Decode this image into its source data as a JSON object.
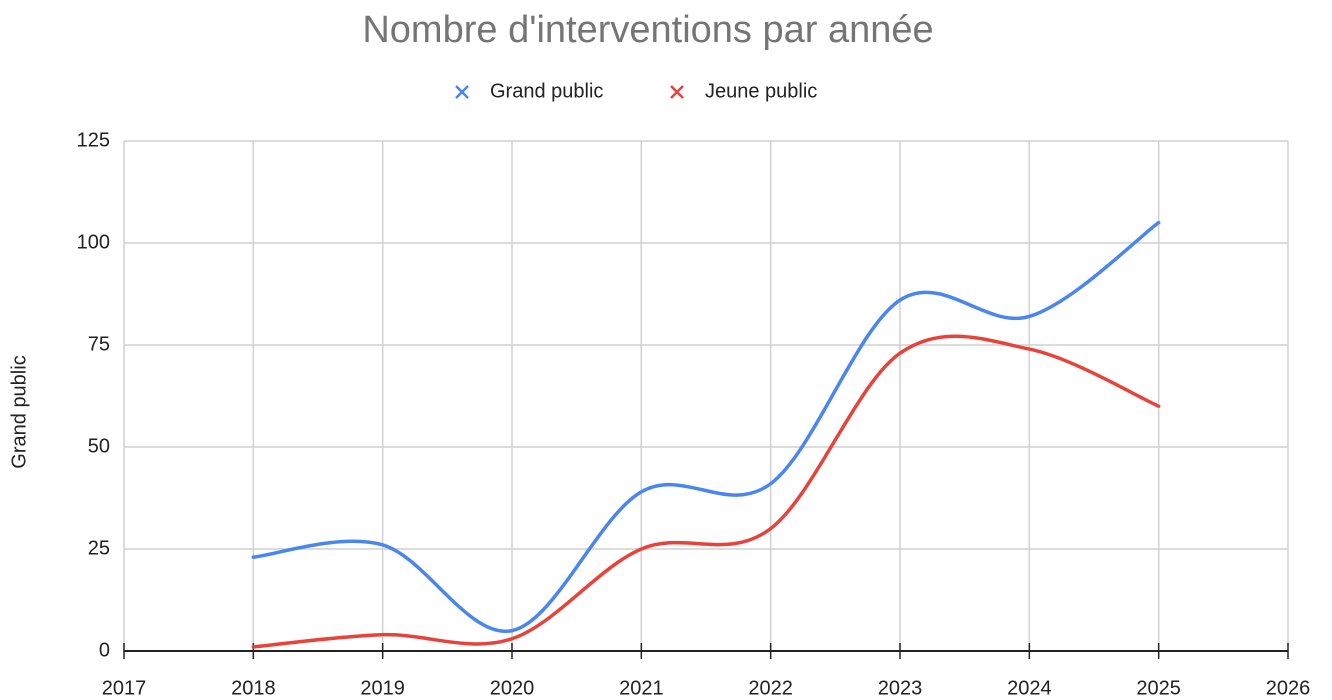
{
  "chart_data": {
    "type": "line",
    "title": "Nombre d'interventions par année",
    "y_label": "Grand public",
    "x": [
      2018,
      2019,
      2020,
      2021,
      2022,
      2023,
      2024,
      2025
    ],
    "series": [
      {
        "name": "Grand public",
        "color": "#4a86f0",
        "values": [
          23,
          26,
          5,
          39,
          41,
          86,
          82,
          105
        ]
      },
      {
        "name": "Jeune public",
        "color": "#e8433a",
        "values": [
          1,
          4,
          3,
          25,
          30,
          73,
          74,
          60
        ]
      }
    ],
    "xlim": [
      2017,
      2026
    ],
    "xticks": [
      2017,
      2018,
      2019,
      2020,
      2021,
      2022,
      2023,
      2024,
      2025,
      2026
    ],
    "ylim": [
      0,
      125
    ],
    "yticks": [
      0,
      25,
      50,
      75,
      100,
      125
    ],
    "grid": true,
    "smooth": true,
    "legend": "top"
  }
}
